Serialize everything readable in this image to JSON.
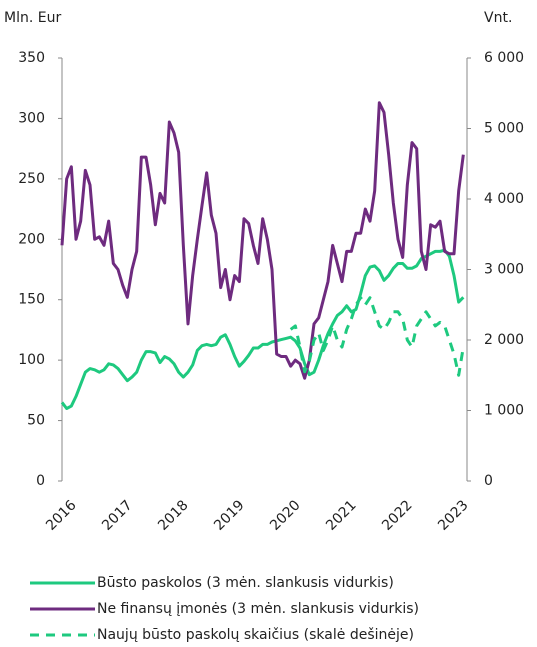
{
  "chart_data": {
    "type": "line",
    "y_label": "Mln. Eur",
    "y2_label": "Vnt.",
    "categories": [
      "2016",
      null,
      null,
      null,
      null,
      null,
      null,
      null,
      null,
      null,
      null,
      null,
      "2017",
      null,
      null,
      null,
      null,
      null,
      null,
      null,
      null,
      null,
      null,
      null,
      "2018",
      null,
      null,
      null,
      null,
      null,
      null,
      null,
      null,
      null,
      null,
      null,
      "2019",
      null,
      null,
      null,
      null,
      null,
      null,
      null,
      null,
      null,
      null,
      null,
      "2020",
      null,
      null,
      null,
      null,
      null,
      null,
      null,
      null,
      null,
      null,
      null,
      "2021",
      null,
      null,
      null,
      null,
      null,
      null,
      null,
      null,
      null,
      null,
      null,
      "2022",
      null,
      null,
      null,
      null,
      null,
      null,
      null,
      null,
      null,
      null,
      null,
      "2023",
      null,
      null
    ],
    "ylim": [
      0,
      350
    ],
    "yticks": [
      0,
      50,
      100,
      150,
      200,
      250,
      300,
      350
    ],
    "y2lim": [
      0,
      6000
    ],
    "y2ticks": [
      0,
      {
        "value": 1000,
        "label": "1 000"
      },
      {
        "value": 2000,
        "label": "2 000"
      },
      {
        "value": 3000,
        "label": "3 000"
      },
      {
        "value": 4000,
        "label": "4 000"
      },
      {
        "value": 5000,
        "label": "5 000"
      },
      {
        "value": 6000,
        "label": "6 000"
      }
    ],
    "series": [
      {
        "name": "Būsto paskolos (3 mėn. slankusis vidurkis)",
        "color": "#1ec97f",
        "dashed": false,
        "values": [
          65,
          60,
          62,
          70,
          80,
          90,
          93,
          92,
          90,
          92,
          97,
          96,
          93,
          88,
          83,
          86,
          90,
          100,
          107,
          107,
          106,
          98,
          103,
          101,
          97,
          90,
          86,
          90,
          96,
          108,
          112,
          113,
          112,
          113,
          119,
          121,
          113,
          103,
          95,
          99,
          104,
          110,
          110,
          113,
          113,
          115,
          116,
          117,
          118,
          119,
          116,
          110,
          97,
          88,
          90,
          100,
          112,
          122,
          130,
          137,
          140,
          145,
          140,
          142,
          155,
          170,
          177,
          178,
          174,
          166,
          170,
          176,
          180,
          180,
          176,
          176,
          178,
          184,
          186,
          188,
          190,
          190,
          191,
          186,
          170,
          148,
          152
        ]
      },
      {
        "name": "Ne finansų įmonės (3 mėn. slankusis vidurkis)",
        "color": "#6e2b7f",
        "dashed": false,
        "values": [
          195,
          250,
          260,
          200,
          215,
          257,
          245,
          200,
          202,
          195,
          215,
          180,
          175,
          162,
          152,
          175,
          190,
          268,
          268,
          245,
          212,
          238,
          230,
          297,
          288,
          272,
          195,
          130,
          170,
          200,
          228,
          255,
          220,
          205,
          160,
          175,
          150,
          170,
          165,
          217,
          213,
          195,
          180,
          217,
          200,
          175,
          105,
          103,
          103,
          95,
          100,
          97,
          85,
          100,
          130,
          135,
          150,
          165,
          195,
          180,
          165,
          190,
          190,
          205,
          205,
          225,
          215,
          240,
          313,
          305,
          270,
          230,
          200,
          185,
          245,
          280,
          275,
          190,
          175,
          212,
          210,
          215,
          190,
          188,
          188,
          240,
          270
        ]
      },
      {
        "name": "Naujų būsto paskolų skaičius (skalė dešinėje)",
        "color": "#1ec97f",
        "dashed": true,
        "axis": "y2",
        "values": [
          null,
          null,
          null,
          null,
          null,
          null,
          null,
          null,
          null,
          null,
          null,
          null,
          null,
          null,
          null,
          null,
          null,
          null,
          null,
          null,
          null,
          null,
          null,
          null,
          null,
          null,
          null,
          null,
          null,
          null,
          null,
          null,
          null,
          null,
          null,
          null,
          null,
          null,
          null,
          null,
          null,
          null,
          null,
          null,
          null,
          null,
          null,
          null,
          null,
          2150,
          2200,
          1900,
          1550,
          1700,
          2000,
          2100,
          1850,
          2000,
          2200,
          2000,
          1900,
          2150,
          2300,
          2500,
          2600,
          2500,
          2600,
          2400,
          2200,
          2150,
          2250,
          2400,
          2400,
          2300,
          2000,
          1900,
          2200,
          2300,
          2400,
          2300,
          2200,
          2250,
          2200,
          2000,
          1800,
          1500,
          1900
        ]
      }
    ]
  }
}
